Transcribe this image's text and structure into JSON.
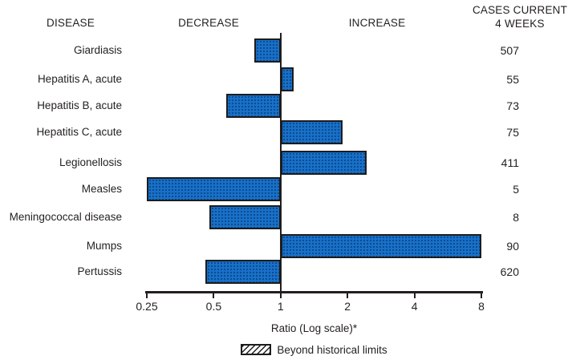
{
  "figure": {
    "headers": {
      "disease": "DISEASE",
      "decrease": "DECREASE",
      "increase": "INCREASE",
      "cases_line1": "CASES CURRENT",
      "cases_line2": "4 WEEKS"
    }
  },
  "chart_data": {
    "type": "bar",
    "orientation": "horizontal",
    "x_scale": "log2",
    "xlabel": "Ratio (Log scale)*",
    "x_ticks": [
      "0.25",
      "0.5",
      "1",
      "2",
      "4",
      "8"
    ],
    "x_range": [
      0.25,
      8
    ],
    "baseline_ratio": 1,
    "bar_color": "#1871c9",
    "legend_label": "Beyond historical limits",
    "rows": [
      {
        "disease": "Giardiasis",
        "ratio": 0.76,
        "cases": 507
      },
      {
        "disease": "Hepatitis A, acute",
        "ratio": 1.14,
        "cases": 55
      },
      {
        "disease": "Hepatitis B, acute",
        "ratio": 0.57,
        "cases": 73
      },
      {
        "disease": "Hepatitis C, acute",
        "ratio": 1.9,
        "cases": 75
      },
      {
        "disease": "Legionellosis",
        "ratio": 2.43,
        "cases": 411
      },
      {
        "disease": "Measles",
        "ratio": 0.25,
        "cases": 5
      },
      {
        "disease": "Meningococcal disease",
        "ratio": 0.48,
        "cases": 8
      },
      {
        "disease": "Mumps",
        "ratio": 8,
        "cases": 90
      },
      {
        "disease": "Pertussis",
        "ratio": 0.46,
        "cases": 620
      }
    ]
  }
}
